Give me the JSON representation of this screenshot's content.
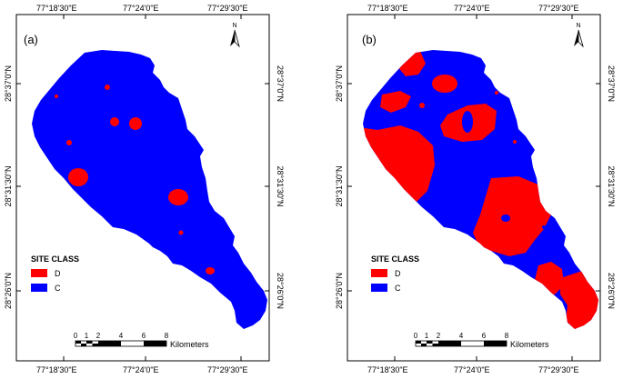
{
  "panels": [
    {
      "letter": "(a)",
      "top_ticks": [
        "77°18'30\"E",
        "77°24'0\"E",
        "77°29'30\"E"
      ],
      "bottom_ticks": [
        "77°18'30\"E",
        "77°24'0\"E",
        "77°29'30\"E"
      ],
      "left_ticks": [
        "28°37'0\"N",
        "28°31'30\"N",
        "28°26'0\"N"
      ],
      "right_ticks": [
        "28°37'0\"N",
        "28°31'30\"N",
        "28°26'0\"N"
      ],
      "north_label": "N",
      "legend": {
        "title": "SITE CLASS",
        "items": [
          {
            "label": "D",
            "color": "#ff0000"
          },
          {
            "label": "C",
            "color": "#0000ff"
          }
        ]
      },
      "scale_bar": {
        "numbers": [
          "0",
          "1",
          "2",
          "4",
          "6",
          "8"
        ],
        "unit": "Kilometers"
      }
    },
    {
      "letter": "(b)",
      "top_ticks": [
        "77°18'30\"E",
        "77°24'0\"E",
        "77°29'30\"E"
      ],
      "bottom_ticks": [
        "77°18'30\"E",
        "77°24'0\"E",
        "77°29'30\"E"
      ],
      "left_ticks": [
        "28°37'0\"N",
        "28°31'30\"N",
        "28°26'0\"N"
      ],
      "right_ticks": [
        "28°37'0\"N",
        "28°31'30\"N",
        "28°26'0\"N"
      ],
      "north_label": "N",
      "legend": {
        "title": "SITE CLASS",
        "items": [
          {
            "label": "D",
            "color": "#ff0000"
          },
          {
            "label": "C",
            "color": "#0000ff"
          }
        ]
      },
      "scale_bar": {
        "numbers": [
          "0",
          "1",
          "2",
          "4",
          "6",
          "8"
        ],
        "unit": "Kilometers"
      }
    }
  ],
  "colors": {
    "class_d": "#ff0000",
    "class_c": "#0000ff"
  }
}
